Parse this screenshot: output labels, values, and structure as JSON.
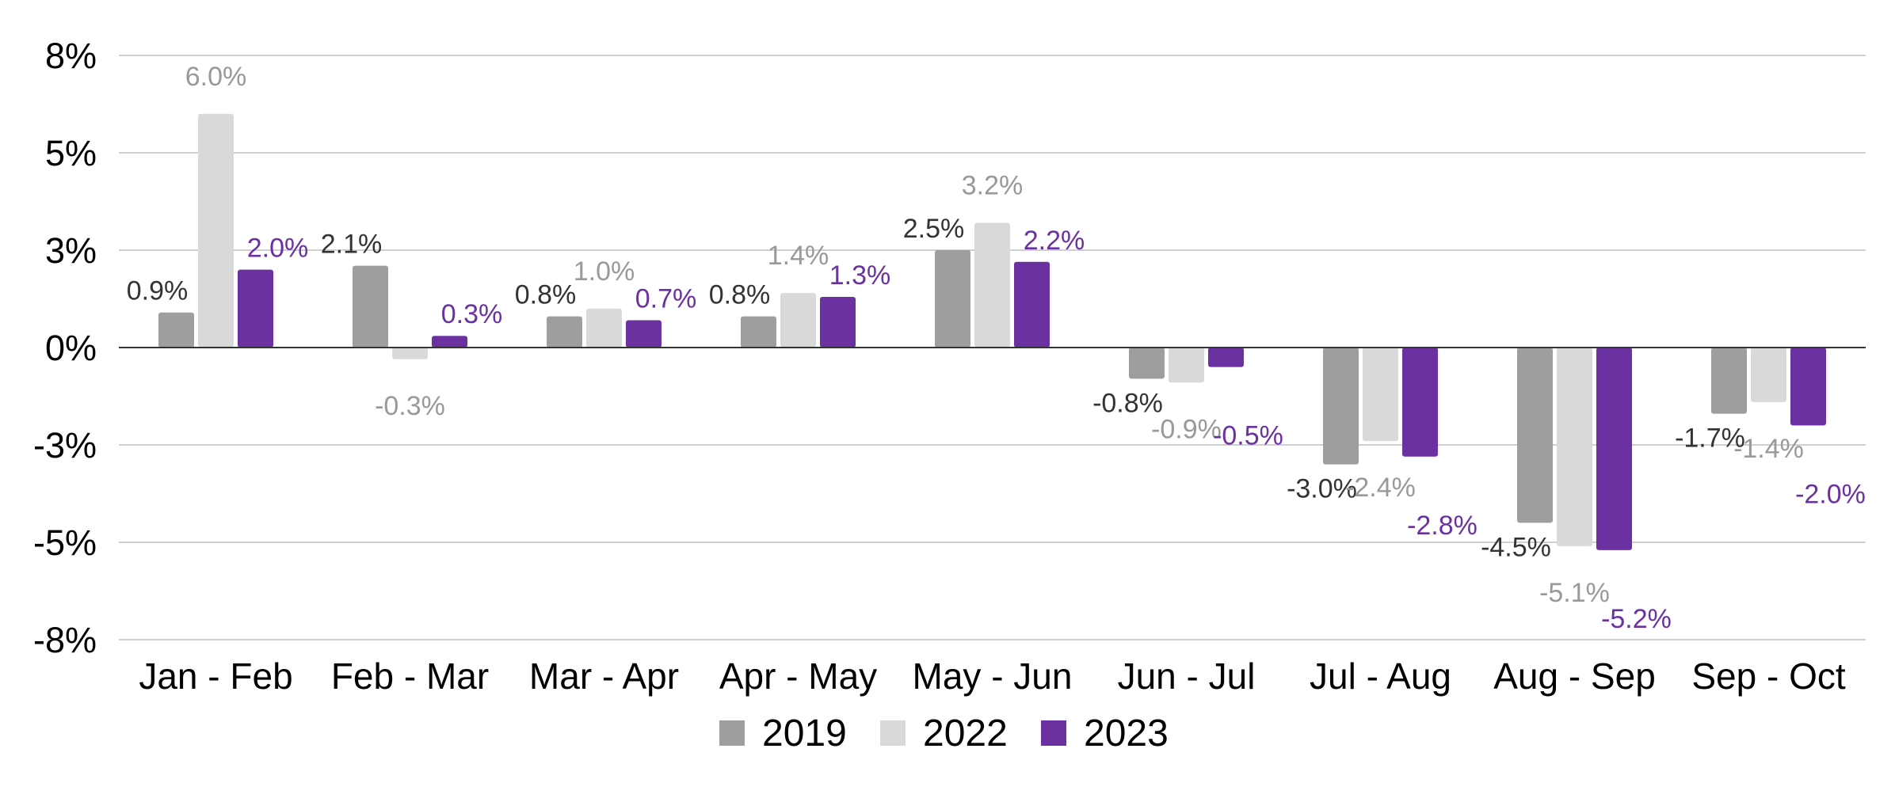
{
  "chart_data": {
    "type": "bar",
    "title": "",
    "xlabel": "",
    "ylabel": "",
    "categories": [
      "Jan - Feb",
      "Feb - Mar",
      "Mar - Apr",
      "Apr - May",
      "May - Jun",
      "Jun - Jul",
      "Jul - Aug",
      "Aug - Sep",
      "Sep - Oct"
    ],
    "series": [
      {
        "name": "2019",
        "color": "#9e9e9e",
        "values": [
          0.9,
          2.1,
          0.8,
          0.8,
          2.5,
          -0.8,
          -3.0,
          -4.5,
          -1.7
        ],
        "labels": [
          "0.9%",
          "2.1%",
          "0.8%",
          "0.8%",
          "2.5%",
          "-0.8%",
          "-3.0%",
          "-4.5%",
          "-1.7%"
        ],
        "label_color": "#333333"
      },
      {
        "name": "2022",
        "color": "#d9d9d9",
        "values": [
          6.0,
          -0.3,
          1.0,
          1.4,
          3.2,
          -0.9,
          -2.4,
          -5.1,
          -1.4
        ],
        "labels": [
          "6.0%",
          "-0.3%",
          "1.0%",
          "1.4%",
          "3.2%",
          "-0.9%",
          "-2.4%",
          "-5.1%",
          "-1.4%"
        ],
        "label_color": "#999999"
      },
      {
        "name": "2023",
        "color": "#6b31a0",
        "values": [
          2.0,
          0.3,
          0.7,
          1.3,
          2.2,
          -0.5,
          -2.8,
          -5.2,
          -2.0
        ],
        "labels": [
          "2.0%",
          "0.3%",
          "0.7%",
          "1.3%",
          "2.2%",
          "-0.5%",
          "-2.8%",
          "-5.2%",
          "-2.0%"
        ],
        "label_color": "#6b31a0"
      }
    ],
    "y_ticks": [
      {
        "value": 7.5,
        "label": "8%"
      },
      {
        "value": 5.0,
        "label": "5%"
      },
      {
        "value": 2.5,
        "label": "3%"
      },
      {
        "value": 0.0,
        "label": "0%"
      },
      {
        "value": -2.5,
        "label": "-3%"
      },
      {
        "value": -5.0,
        "label": "-5%"
      },
      {
        "value": -7.5,
        "label": "-8%"
      }
    ],
    "ylim": [
      -7.5,
      7.5
    ],
    "grid": true,
    "legend_position": "bottom"
  }
}
